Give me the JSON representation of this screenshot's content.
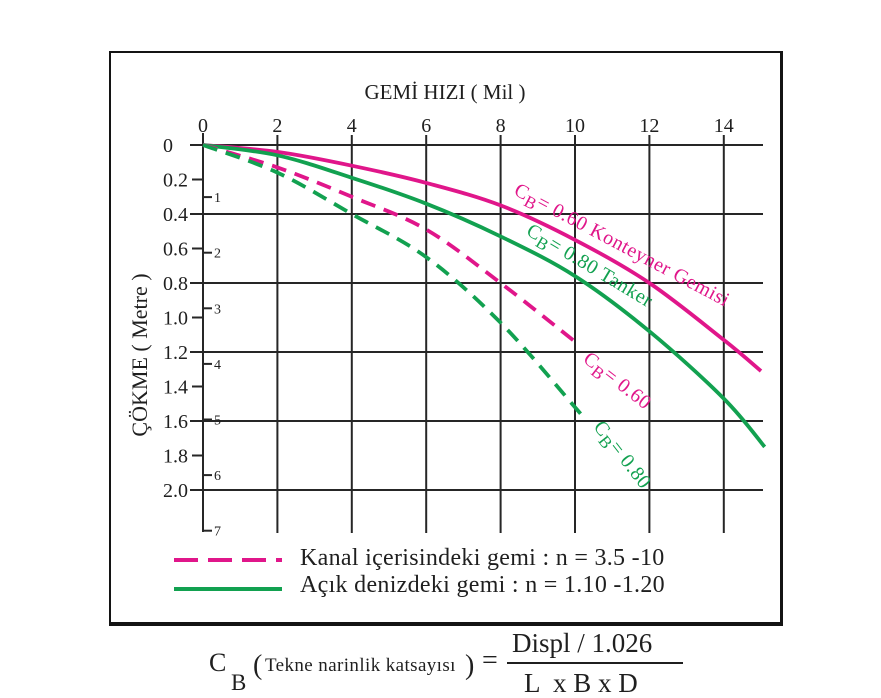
{
  "figure": {
    "x_axis_title": "GEMİ HIZI ( Mil )",
    "y_axis_title": "ÇÖKME ( Metre )"
  },
  "colors": {
    "cb_060": "#e0168a",
    "cb_080": "#12a150",
    "grid": "#262626",
    "text": "#1f1f1f"
  },
  "legend": {
    "items": [
      {
        "label": "Kanal içerisindeki gemi : n = 3.5 -10",
        "line_style": "dashed",
        "color": "#e0168a"
      },
      {
        "label": "Açık denizdeki gemi : n = 1.10 -1.20",
        "line_style": "solid",
        "color": "#12a150"
      }
    ]
  },
  "formula": {
    "symbol": "C",
    "subscript": "B",
    "open_paren": "(",
    "note": "Tekne narinlik katsayısı",
    "close_paren": ")",
    "equals": "=",
    "numerator": "Displ / 1.026",
    "denominator": "L  x B x D"
  },
  "chart_data": {
    "type": "line",
    "title": "",
    "xlabel": "GEMİ HIZI ( Mil )",
    "ylabel": "ÇÖKME ( Metre )",
    "x_axis_position": "top",
    "y_axis_inverted": true,
    "xlim": [
      0,
      15
    ],
    "ylim": [
      0,
      2.0
    ],
    "x_ticks": [
      0,
      2,
      4,
      6,
      8,
      10,
      12,
      14
    ],
    "x_tick_labels": [
      "0",
      "2",
      "4",
      "6",
      "8",
      "10",
      "12",
      "14"
    ],
    "y_ticks": [
      0,
      0.2,
      0.4,
      0.6,
      0.8,
      1.0,
      1.2,
      1.4,
      1.6,
      1.8,
      2.0
    ],
    "y_tick_labels": [
      "0",
      "0.2",
      "0.4",
      "0.6",
      "0.8",
      "1.0",
      "1.2",
      "1.4",
      "1.6",
      "1.8",
      "2.0"
    ],
    "y_gridlines": [
      0,
      0.4,
      0.8,
      1.2,
      1.6,
      2.0
    ],
    "secondary_y_tick_labels": [
      "1",
      "2",
      "3",
      "4",
      "5",
      "6",
      "7"
    ],
    "grid": true,
    "legend_position": "bottom",
    "series": [
      {
        "id": "cb060-open-sea",
        "name": "CB= 0.60 Konteyner Gemisi",
        "condition": "Açık denizdeki gemi",
        "line_style": "solid",
        "color": "#e0168a",
        "x": [
          0,
          2,
          4,
          6,
          8,
          10,
          12,
          14,
          15
        ],
        "y": [
          0,
          0.04,
          0.12,
          0.22,
          0.35,
          0.55,
          0.8,
          1.13,
          1.31
        ]
      },
      {
        "id": "cb080-open-sea",
        "name": "CB= 0.80 Tanker",
        "condition": "Açık denizdeki gemi",
        "line_style": "solid",
        "color": "#12a150",
        "x": [
          0,
          2,
          4,
          6,
          8,
          10,
          12,
          14,
          15.1
        ],
        "y": [
          0,
          0.06,
          0.19,
          0.34,
          0.53,
          0.76,
          1.08,
          1.47,
          1.75
        ]
      },
      {
        "id": "cb060-channel",
        "name": "CB= 0.60",
        "condition": "Kanal içerisindeki gemi",
        "line_style": "dashed",
        "color": "#e0168a",
        "x": [
          0,
          2,
          4,
          6,
          8,
          10
        ],
        "y": [
          0,
          0.13,
          0.3,
          0.49,
          0.8,
          1.14
        ]
      },
      {
        "id": "cb080-channel",
        "name": "CB= 0.80",
        "condition": "Kanal içerisindeki gemi",
        "line_style": "dashed",
        "color": "#12a150",
        "x": [
          0,
          2,
          4,
          6,
          8,
          10,
          10.25
        ],
        "y": [
          0,
          0.16,
          0.4,
          0.65,
          1.03,
          1.52,
          1.59
        ]
      }
    ],
    "annotations": [
      {
        "series": "cb060-open-sea",
        "main": "C",
        "sub": "B",
        "rest": "= 0.60 Konteyner Gemisi",
        "x": 8.33,
        "y": 0.284,
        "angle": 28,
        "color": "#e0168a"
      },
      {
        "series": "cb080-open-sea",
        "main": "C",
        "sub": "B",
        "rest": "= 0.80 Tanker",
        "x": 8.66,
        "y": 0.516,
        "angle": 31,
        "color": "#12a150"
      },
      {
        "series": "cb060-channel",
        "main": "C",
        "sub": "B",
        "rest": "= 0.60",
        "x": 10.19,
        "y": 1.252,
        "angle": 38,
        "color": "#e0168a"
      },
      {
        "series": "cb080-channel",
        "main": "C",
        "sub": "B",
        "rest": "= 0.80",
        "x": 10.48,
        "y": 1.635,
        "angle": 52,
        "color": "#12a150"
      }
    ]
  }
}
